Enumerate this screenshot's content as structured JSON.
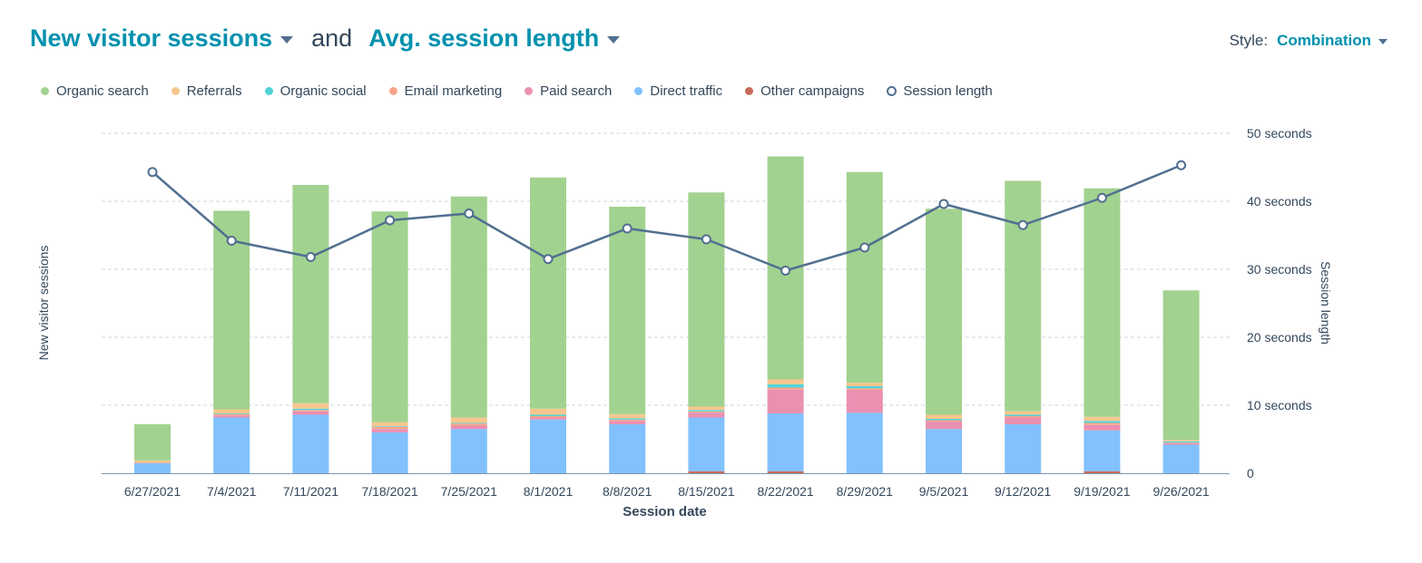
{
  "header": {
    "primary_metric": "New visitor sessions",
    "joiner": "and",
    "secondary_metric": "Avg. session length"
  },
  "style_control": {
    "label": "Style:",
    "value": "Combination"
  },
  "legend": [
    {
      "label": "Organic search",
      "color": "#a2d28f",
      "marker": "dot"
    },
    {
      "label": "Referrals",
      "color": "#f5c78e",
      "marker": "dot"
    },
    {
      "label": "Organic social",
      "color": "#51d3d9",
      "marker": "dot"
    },
    {
      "label": "Email marketing",
      "color": "#f8a58c",
      "marker": "dot"
    },
    {
      "label": "Paid search",
      "color": "#ea90b1",
      "marker": "dot"
    },
    {
      "label": "Direct traffic",
      "color": "#81c1fd",
      "marker": "dot"
    },
    {
      "label": "Other campaigns",
      "color": "#c86a5a",
      "marker": "dot"
    },
    {
      "label": "Session length",
      "color": "#516f90",
      "marker": "ring"
    }
  ],
  "chart_data": {
    "type": "bar+line",
    "xlabel": "Session date",
    "ylabel_left": "New visitor sessions",
    "ylabel_right": "Session length",
    "ylim": [
      0,
      50
    ],
    "y_ticks": [
      0,
      10,
      20,
      30,
      40,
      50
    ],
    "y_tick_labels": [
      "0",
      "10 seconds",
      "20 seconds",
      "30 seconds",
      "40 seconds",
      "50 seconds"
    ],
    "grid": true,
    "categories": [
      "6/27/2021",
      "7/4/2021",
      "7/11/2021",
      "7/18/2021",
      "7/25/2021",
      "8/1/2021",
      "8/8/2021",
      "8/15/2021",
      "8/22/2021",
      "8/29/2021",
      "9/5/2021",
      "9/12/2021",
      "9/19/2021",
      "9/26/2021"
    ],
    "stacked_series": [
      {
        "name": "Other campaigns",
        "color": "#c86a5a",
        "values": [
          0,
          0,
          0,
          0,
          0,
          0,
          0,
          0.3,
          0.3,
          0,
          0,
          0,
          0.3,
          0
        ]
      },
      {
        "name": "Direct traffic",
        "color": "#81c1fd",
        "values": [
          1.5,
          8.2,
          8.6,
          6.0,
          6.5,
          7.9,
          7.2,
          7.9,
          8.5,
          8.9,
          6.5,
          7.2,
          6.0,
          4.2
        ]
      },
      {
        "name": "Paid search",
        "color": "#ea90b1",
        "values": [
          0,
          0.3,
          0.5,
          0.5,
          0.5,
          0.3,
          0.5,
          0.7,
          3.5,
          3.3,
          1.1,
          1.0,
          0.8,
          0.2
        ]
      },
      {
        "name": "Email marketing",
        "color": "#f8a58c",
        "values": [
          0.1,
          0.2,
          0.2,
          0.3,
          0.3,
          0.2,
          0.2,
          0.2,
          0.3,
          0.3,
          0.2,
          0.2,
          0.3,
          0.1
        ]
      },
      {
        "name": "Organic social",
        "color": "#51d3d9",
        "values": [
          0,
          0.1,
          0.2,
          0.1,
          0.1,
          0.2,
          0.2,
          0.2,
          0.5,
          0.3,
          0.2,
          0.2,
          0.3,
          0.2
        ]
      },
      {
        "name": "Referrals",
        "color": "#f5c78e",
        "values": [
          0.3,
          0.6,
          0.8,
          0.6,
          0.8,
          0.9,
          0.6,
          0.5,
          0.7,
          0.5,
          0.6,
          0.5,
          0.6,
          0.2
        ]
      },
      {
        "name": "Organic search",
        "color": "#a2d28f",
        "values": [
          5.3,
          29.2,
          32.1,
          31.0,
          32.5,
          34.0,
          30.5,
          31.5,
          32.8,
          31.0,
          30.3,
          33.9,
          33.6,
          22.0
        ]
      }
    ],
    "line_series": {
      "name": "Session length",
      "color": "#516f90",
      "values": [
        44.3,
        34.2,
        31.8,
        37.2,
        38.2,
        31.5,
        36.0,
        34.4,
        29.8,
        33.2,
        39.6,
        36.5,
        40.5,
        45.3
      ]
    }
  }
}
